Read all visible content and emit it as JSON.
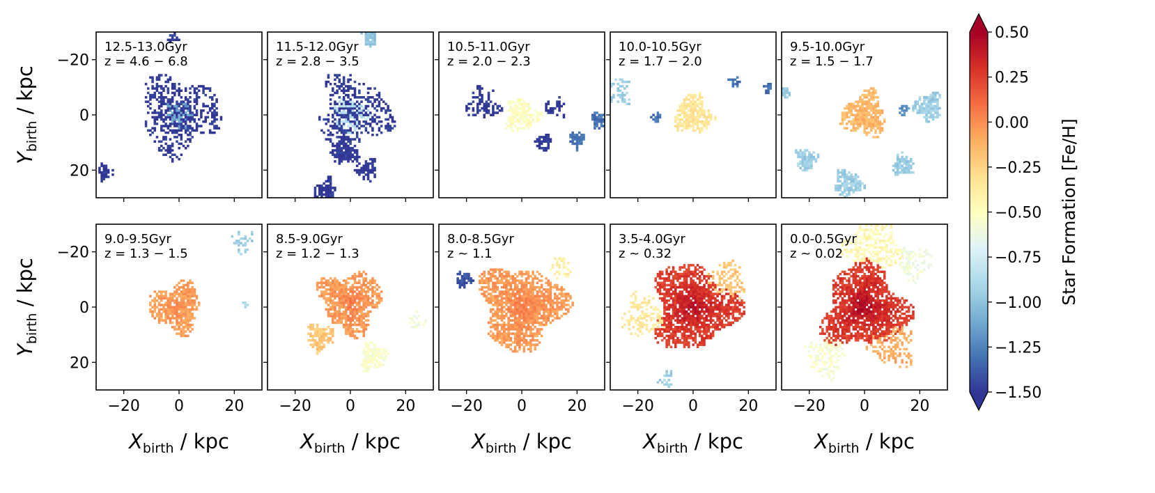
{
  "figure": {
    "x_label_main": "X",
    "x_label_sub": "birth",
    "x_label_unit": " / kpc",
    "y_label_main": "Y",
    "y_label_sub": "birth",
    "y_label_unit": " / kpc"
  },
  "colorbar": {
    "label": "Star Formation [Fe/H]",
    "ticks": [
      "0.50",
      "0.25",
      "0.00",
      "−0.25",
      "−0.50",
      "−0.75",
      "−1.00",
      "−1.25",
      "−1.50"
    ],
    "range": [
      -1.5,
      0.5
    ],
    "colormap": "RdYlBu_r",
    "extend": "both",
    "colors": [
      "#313695",
      "#4575b4",
      "#74add1",
      "#abd9e9",
      "#e0f3f8",
      "#ffffbf",
      "#fee090",
      "#fdae61",
      "#f46d43",
      "#d73027",
      "#a50026"
    ]
  },
  "axes": {
    "x_ticks": [
      "−20",
      "0",
      "20"
    ],
    "y_ticks": [
      "20",
      "0",
      "−20"
    ]
  },
  "chart_data": {
    "type": "heatmap",
    "layout": "2 rows x 5 columns",
    "xlabel": "X_birth / kpc",
    "ylabel": "Y_birth / kpc",
    "xlim": [
      -30,
      30
    ],
    "ylim": [
      -30,
      30
    ],
    "x_ticks": [
      -20,
      0,
      20
    ],
    "y_ticks": [
      -20,
      0,
      20
    ],
    "colorbar_label": "Star Formation [Fe/H]",
    "color_range": [
      -1.5,
      0.5
    ],
    "panels": [
      {
        "age": "12.5-13.0Gyr",
        "z": "z = 4.6 − 6.8",
        "central_feh": -1.1,
        "blobs": [
          {
            "x": 0,
            "y": 0,
            "r": 5,
            "feh": -1.15
          },
          {
            "x": 0,
            "y": 0,
            "r": 14,
            "feh": -1.5,
            "sparse": true
          },
          {
            "x": -27,
            "y": -21,
            "r": 3,
            "feh": -1.5
          },
          {
            "x": -2,
            "y": 28,
            "r": 2,
            "feh": -1.5
          }
        ]
      },
      {
        "age": "11.5-12.0Gyr",
        "z": "z = 2.8 − 3.5",
        "central_feh": -0.9,
        "blobs": [
          {
            "x": 0,
            "y": 0,
            "r": 6,
            "feh": -0.85
          },
          {
            "x": 1,
            "y": 1,
            "r": 13,
            "feh": -1.5,
            "sparse": true
          },
          {
            "x": -2,
            "y": -13,
            "r": 5,
            "feh": -1.5
          },
          {
            "x": -9,
            "y": -27,
            "r": 4,
            "feh": -1.5
          },
          {
            "x": 6,
            "y": -20,
            "r": 4,
            "feh": -1.5
          },
          {
            "x": 7,
            "y": 28,
            "r": 3,
            "feh": -1.0
          }
        ]
      },
      {
        "age": "10.5-11.0Gyr",
        "z": "z = 2.0 − 2.3",
        "central_feh": -0.5,
        "blobs": [
          {
            "x": 0,
            "y": 0,
            "r": 6,
            "feh": -0.5
          },
          {
            "x": -14,
            "y": 4,
            "r": 6,
            "feh": -1.5,
            "sparse": true
          },
          {
            "x": 12,
            "y": 3,
            "r": 4,
            "feh": -1.5,
            "sparse": true
          },
          {
            "x": 8,
            "y": -10,
            "r": 3,
            "feh": -1.5
          },
          {
            "x": 20,
            "y": -9,
            "r": 3,
            "feh": -1.3
          },
          {
            "x": 28,
            "y": -2,
            "r": 3,
            "feh": -1.3
          }
        ]
      },
      {
        "age": "10.0-10.5Gyr",
        "z": "z = 1.7 − 2.0",
        "central_feh": -0.3,
        "blobs": [
          {
            "x": 0,
            "y": 0,
            "r": 7,
            "feh": -0.35
          },
          {
            "x": -27,
            "y": 8,
            "r": 5,
            "feh": -0.95,
            "sparse": true
          },
          {
            "x": -13,
            "y": -1,
            "r": 2,
            "feh": -1.3
          },
          {
            "x": 15,
            "y": 12,
            "r": 2,
            "feh": -1.3
          },
          {
            "x": 27,
            "y": 10,
            "r": 2,
            "feh": -1.3
          }
        ]
      },
      {
        "age": "9.5-10.0Gyr",
        "z": "z = 1.5 − 1.7",
        "central_feh": -0.1,
        "blobs": [
          {
            "x": 0,
            "y": 0,
            "r": 8,
            "feh": -0.15
          },
          {
            "x": 23,
            "y": 3,
            "r": 5,
            "feh": -0.95
          },
          {
            "x": 14,
            "y": 2,
            "r": 2,
            "feh": -1.2
          },
          {
            "x": -21,
            "y": -16,
            "r": 4,
            "feh": -0.95
          },
          {
            "x": -6,
            "y": -25,
            "r": 5,
            "feh": -0.95
          },
          {
            "x": 14,
            "y": -18,
            "r": 4,
            "feh": -0.95
          },
          {
            "x": -29,
            "y": 8,
            "r": 2,
            "feh": -0.95
          }
        ]
      },
      {
        "age": "9.0-9.5Gyr",
        "z": "z = 1.3 − 1.5",
        "central_feh": 0.0,
        "blobs": [
          {
            "x": -1,
            "y": 0,
            "r": 9,
            "feh": -0.05
          },
          {
            "x": 23,
            "y": 24,
            "r": 4,
            "feh": -0.95,
            "sparse": true
          },
          {
            "x": 24,
            "y": 1,
            "r": 1,
            "feh": -0.9
          }
        ]
      },
      {
        "age": "8.5-9.0Gyr",
        "z": "z = 1.2 − 1.3",
        "central_feh": 0.05,
        "blobs": [
          {
            "x": 0,
            "y": 2,
            "r": 11,
            "feh": -0.05
          },
          {
            "x": -11,
            "y": -11,
            "r": 5,
            "feh": -0.2
          },
          {
            "x": 8,
            "y": -18,
            "r": 5,
            "feh": -0.55
          },
          {
            "x": 24,
            "y": -5,
            "r": 3,
            "feh": -0.6,
            "sparse": true
          }
        ]
      },
      {
        "age": "8.0-8.5Gyr",
        "z": "z ~ 1.1",
        "central_feh": 0.05,
        "blobs": [
          {
            "x": 0,
            "y": 0,
            "r": 15,
            "feh": -0.05
          },
          {
            "x": -21,
            "y": 10,
            "r": 3,
            "feh": -1.4
          },
          {
            "x": 14,
            "y": 14,
            "r": 4,
            "feh": -0.4,
            "sparse": true
          }
        ]
      },
      {
        "age": "3.5-4.0Gyr",
        "z": "z ~ 0.32",
        "central_feh": 0.45,
        "blobs": [
          {
            "x": 0,
            "y": 0,
            "r": 15,
            "feh": 0.25
          },
          {
            "x": -18,
            "y": -3,
            "r": 8,
            "feh": -0.35,
            "sparse": true
          },
          {
            "x": 12,
            "y": 10,
            "r": 7,
            "feh": -0.2,
            "sparse": true
          },
          {
            "x": -10,
            "y": -26,
            "r": 3,
            "feh": -0.95,
            "sparse": true
          }
        ]
      },
      {
        "age": "0.0-0.5Gyr",
        "z": "z ~ 0.02",
        "central_feh": 0.5,
        "blobs": [
          {
            "x": 0,
            "y": 0,
            "r": 15,
            "feh": 0.25
          },
          {
            "x": 3,
            "y": 23,
            "r": 10,
            "feh": -0.45,
            "sparse": true
          },
          {
            "x": 10,
            "y": -14,
            "r": 8,
            "feh": -0.1,
            "sparse": true
          },
          {
            "x": -14,
            "y": -18,
            "r": 7,
            "feh": -0.55,
            "sparse": true
          },
          {
            "x": 18,
            "y": 16,
            "r": 6,
            "feh": -0.6,
            "sparse": true
          }
        ]
      }
    ]
  }
}
